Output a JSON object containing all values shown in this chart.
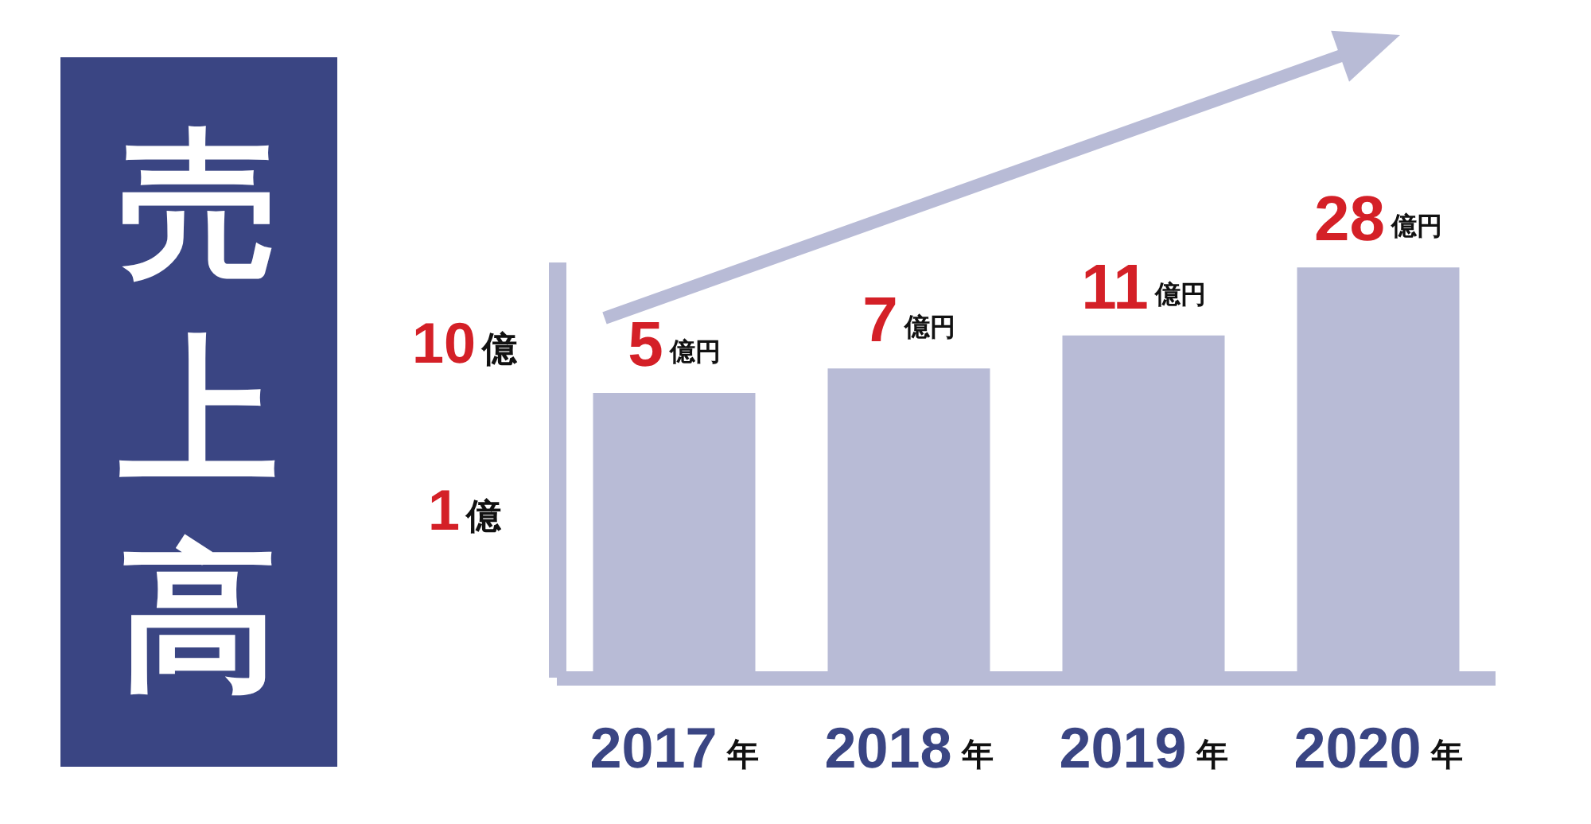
{
  "chart_data": {
    "type": "bar",
    "title": "売上高",
    "categories": [
      "2017年",
      "2018年",
      "2019年",
      "2020年"
    ],
    "values": [
      5,
      7,
      11,
      28
    ],
    "value_labels": [
      "5億円",
      "7億円",
      "11億円",
      "28億円"
    ],
    "color": "#b8bbd6",
    "log": true,
    "ylim": [
      0.1,
      30
    ],
    "yticks": [
      {
        "value": 1,
        "label": "1億"
      },
      {
        "value": 10,
        "label": "10億"
      }
    ]
  }
}
